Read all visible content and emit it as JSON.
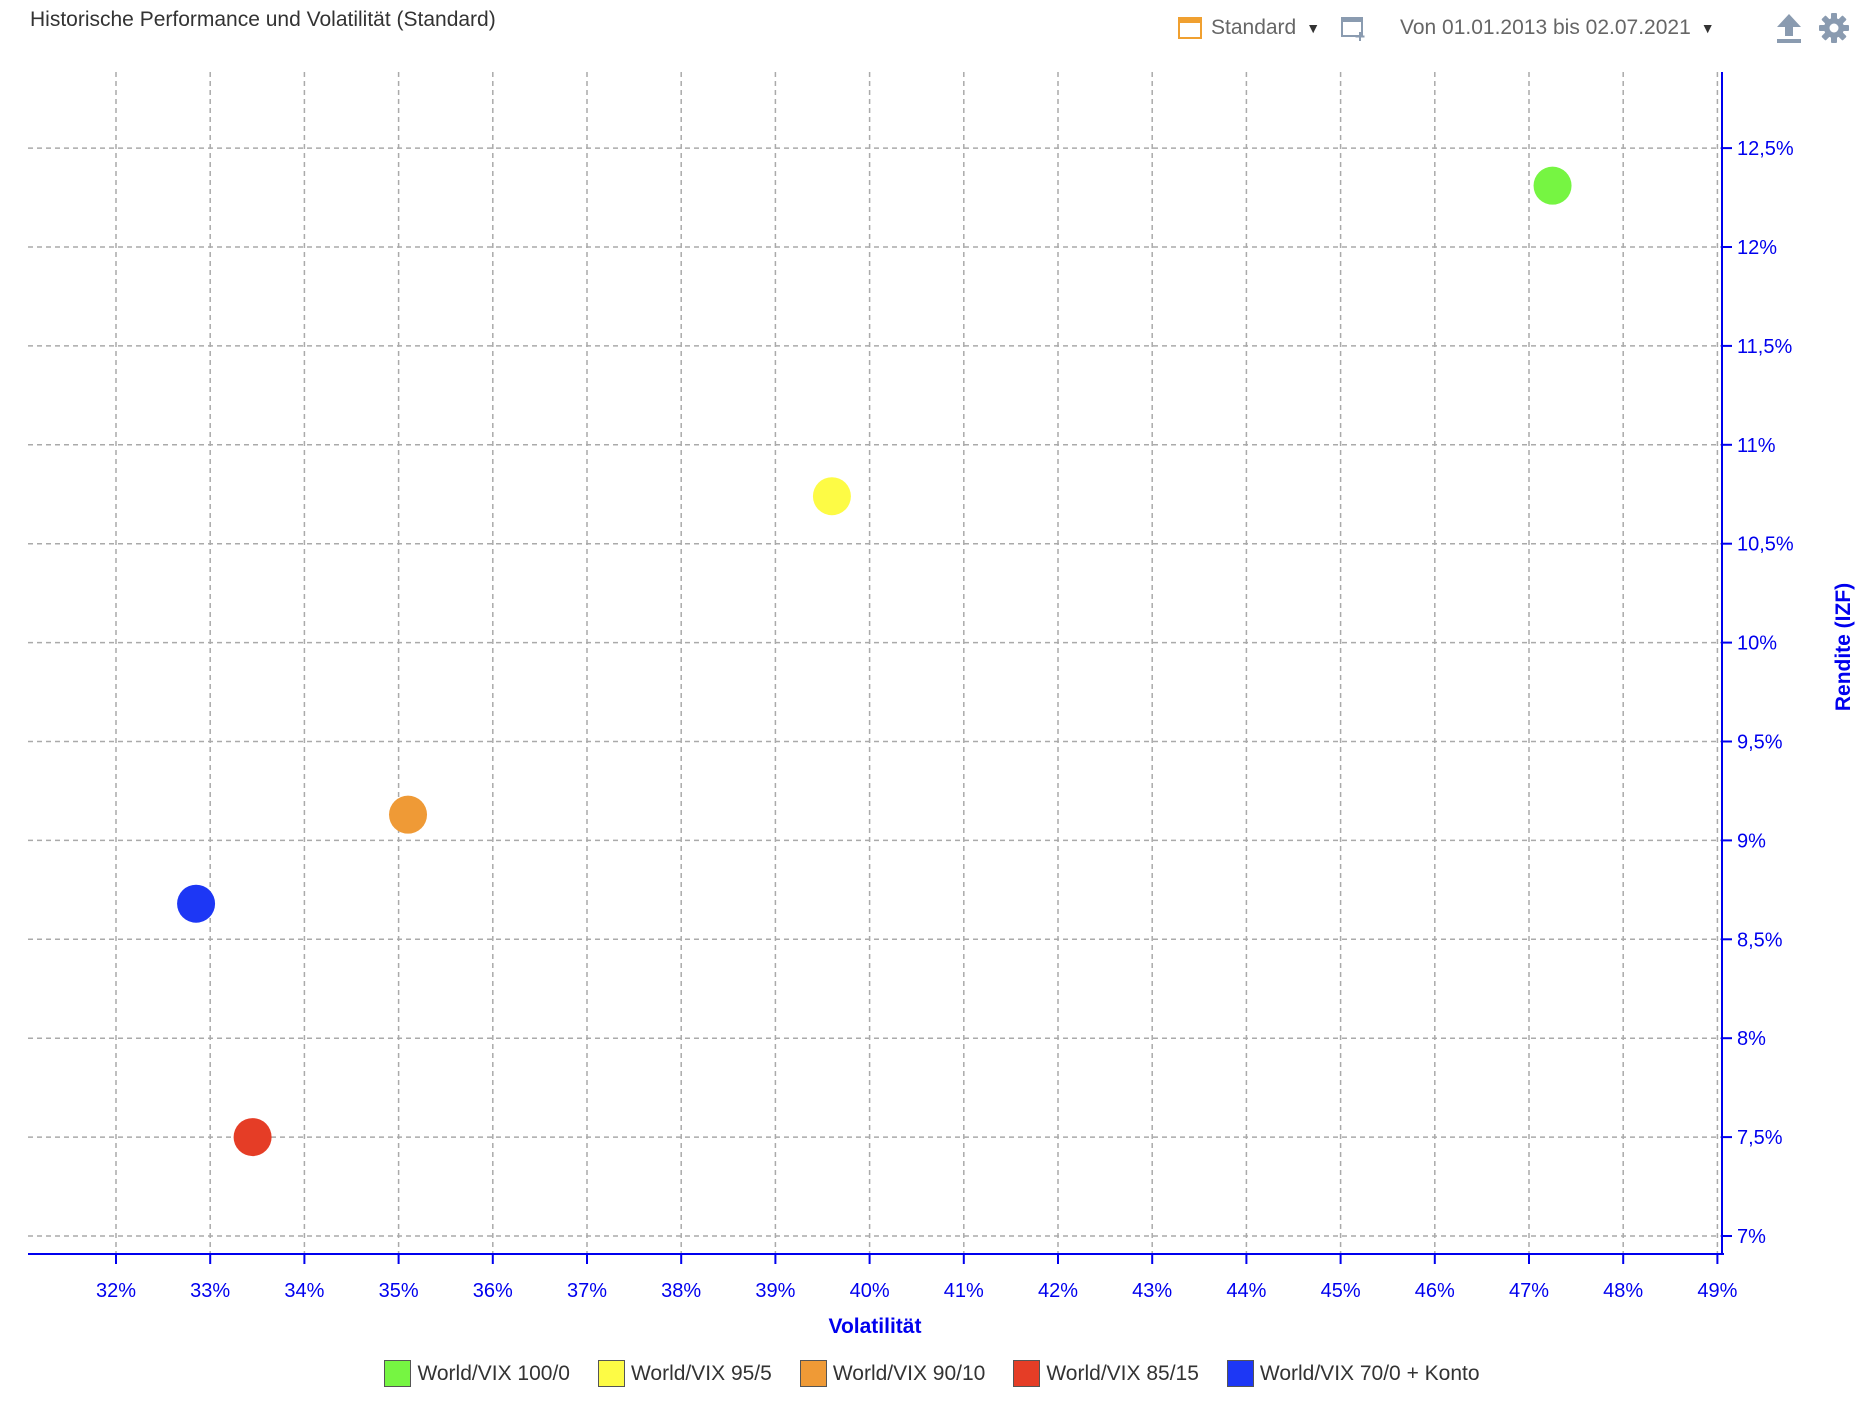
{
  "header": {
    "title": "Historische Performance und Volatilität (Standard)",
    "view_label": "Standard",
    "range_label": "Von 01.01.2013 bis 02.07.2021"
  },
  "icons": {
    "view": "calendar-icon",
    "add_view": "add-view-icon",
    "export": "upload-icon",
    "settings": "gear-icon"
  },
  "colors": {
    "axis": "#0000ee",
    "grid": "#aaaaaa",
    "calendar_icon": "#f0a030"
  },
  "chart_data": {
    "type": "scatter",
    "xlabel": "Volatilität",
    "ylabel": "Rendite (IZF)",
    "xlim": [
      31,
      49
    ],
    "ylim": [
      6.9,
      12.9
    ],
    "x_ticks": [
      32,
      33,
      34,
      35,
      36,
      37,
      38,
      39,
      40,
      41,
      42,
      43,
      44,
      45,
      46,
      47,
      48,
      49
    ],
    "x_tick_labels": [
      "32%",
      "33%",
      "34%",
      "35%",
      "36%",
      "37%",
      "38%",
      "39%",
      "40%",
      "41%",
      "42%",
      "43%",
      "44%",
      "45%",
      "46%",
      "47%",
      "48%",
      "49%"
    ],
    "y_ticks": [
      7,
      7.5,
      8,
      8.5,
      9,
      9.5,
      10,
      10.5,
      11,
      11.5,
      12,
      12.5
    ],
    "y_tick_labels": [
      "7%",
      "7,5%",
      "8%",
      "8,5%",
      "9%",
      "9,5%",
      "10%",
      "10,5%",
      "11%",
      "11,5%",
      "12%",
      "12,5%"
    ],
    "y_axis_side": "right",
    "grid": true,
    "legend_position": "bottom",
    "series": [
      {
        "name": "World/VIX 100/0",
        "color": "#76f542",
        "x": 47.25,
        "y": 12.31
      },
      {
        "name": "World/VIX 95/5",
        "color": "#fdfb45",
        "x": 39.6,
        "y": 10.74
      },
      {
        "name": "World/VIX 90/10",
        "color": "#ef9a36",
        "x": 35.1,
        "y": 9.13
      },
      {
        "name": "World/VIX 85/15",
        "color": "#e53d26",
        "x": 33.45,
        "y": 7.5
      },
      {
        "name": "World/VIX 70/0 + Konto",
        "color": "#1d37f5",
        "x": 32.85,
        "y": 8.68
      }
    ]
  }
}
